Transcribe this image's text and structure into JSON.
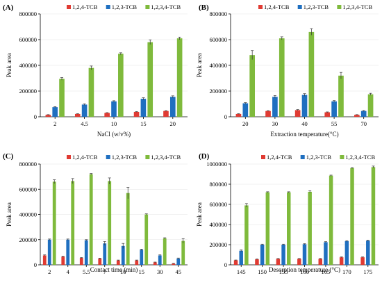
{
  "chart_data": [
    {
      "panel": "(A)",
      "type": "bar",
      "xlabel": "NaCl (w/v%)",
      "ylabel": "Peak area",
      "ylim": [
        0,
        800000
      ],
      "yticks": [
        "0",
        "200000",
        "400000",
        "600000",
        "800000"
      ],
      "categories": [
        "2",
        "4.5",
        "10",
        "15",
        "20"
      ],
      "legend_position": "top",
      "series": [
        {
          "name": "1,2,4-TCB",
          "color": "#e03b33",
          "values": [
            15000,
            22000,
            30000,
            38000,
            45000
          ],
          "errors": [
            2000,
            2000,
            2500,
            2500,
            3000
          ]
        },
        {
          "name": "1,2,3-TCB",
          "color": "#1f6fc0",
          "values": [
            75000,
            95000,
            120000,
            140000,
            155000
          ],
          "errors": [
            4000,
            6000,
            5000,
            8000,
            8000
          ]
        },
        {
          "name": "1,2,3,4-TCB",
          "color": "#7fba3c",
          "values": [
            295000,
            380000,
            490000,
            580000,
            610000
          ],
          "errors": [
            10000,
            15000,
            8000,
            18000,
            10000
          ]
        }
      ]
    },
    {
      "panel": "(B)",
      "type": "bar",
      "xlabel": "Extraction temperature(°C)",
      "ylabel": "Peak area",
      "ylim": [
        0,
        800000
      ],
      "yticks": [
        "0",
        "200000",
        "400000",
        "600000",
        "800000"
      ],
      "categories": [
        "20",
        "30",
        "40",
        "55",
        "70"
      ],
      "legend_position": "top",
      "series": [
        {
          "name": "1,2,4-TCB",
          "color": "#e03b33",
          "values": [
            22000,
            45000,
            52000,
            35000,
            15000
          ],
          "errors": [
            2000,
            3000,
            4000,
            3000,
            2000
          ]
        },
        {
          "name": "1,2,3-TCB",
          "color": "#1f6fc0",
          "values": [
            105000,
            155000,
            170000,
            120000,
            45000
          ],
          "errors": [
            5000,
            10000,
            10000,
            6000,
            4000
          ]
        },
        {
          "name": "1,2,3,4-TCB",
          "color": "#7fba3c",
          "values": [
            480000,
            610000,
            660000,
            320000,
            175000
          ],
          "errors": [
            35000,
            12000,
            25000,
            25000,
            8000
          ]
        }
      ]
    },
    {
      "panel": "(C)",
      "type": "bar",
      "xlabel": "Contact time (min)",
      "ylabel": "Peak area",
      "ylim": [
        0,
        800000
      ],
      "yticks": [
        "0",
        "200000",
        "400000",
        "600000",
        "800000"
      ],
      "categories": [
        "2",
        "4",
        "5.5",
        "7",
        "10",
        "15",
        "30",
        "45"
      ],
      "legend_position": "top",
      "series": [
        {
          "name": "1,2,4-TCB",
          "color": "#e03b33",
          "values": [
            75000,
            65000,
            55000,
            50000,
            35000,
            35000,
            20000,
            10000
          ],
          "errors": [
            4000,
            4000,
            3000,
            3000,
            3000,
            3000,
            2000,
            2000
          ]
        },
        {
          "name": "1,2,3-TCB",
          "color": "#1f6fc0",
          "values": [
            200000,
            200000,
            195000,
            170000,
            150000,
            120000,
            75000,
            50000
          ],
          "errors": [
            5000,
            5000,
            5000,
            15000,
            20000,
            5000,
            4000,
            4000
          ]
        },
        {
          "name": "1,2,3,4-TCB",
          "color": "#7fba3c",
          "values": [
            660000,
            665000,
            720000,
            665000,
            570000,
            400000,
            210000,
            190000
          ],
          "errors": [
            15000,
            20000,
            5000,
            25000,
            45000,
            5000,
            5000,
            18000
          ]
        }
      ]
    },
    {
      "panel": "(D)",
      "type": "bar",
      "xlabel": "Desorption temperature (°C)",
      "ylabel": "Peak area",
      "ylim": [
        0,
        1000000
      ],
      "yticks": [
        "0",
        "200000",
        "400000",
        "600000",
        "800000",
        "1000000"
      ],
      "categories": [
        "145",
        "150",
        "155",
        "160",
        "165",
        "170",
        "175"
      ],
      "legend_position": "top",
      "series": [
        {
          "name": "1,2,4-TCB",
          "color": "#e03b33",
          "values": [
            45000,
            55000,
            60000,
            60000,
            60000,
            75000,
            75000
          ],
          "errors": [
            3000,
            3000,
            3000,
            3000,
            3000,
            4000,
            4000
          ]
        },
        {
          "name": "1,2,3-TCB",
          "color": "#1f6fc0",
          "values": [
            140000,
            200000,
            200000,
            205000,
            225000,
            235000,
            240000
          ],
          "errors": [
            8000,
            5000,
            5000,
            5000,
            5000,
            5000,
            5000
          ]
        },
        {
          "name": "1,2,3,4-TCB",
          "color": "#7fba3c",
          "values": [
            590000,
            720000,
            720000,
            725000,
            885000,
            960000,
            970000
          ],
          "errors": [
            18000,
            5000,
            5000,
            10000,
            5000,
            5000,
            10000
          ]
        }
      ]
    }
  ]
}
